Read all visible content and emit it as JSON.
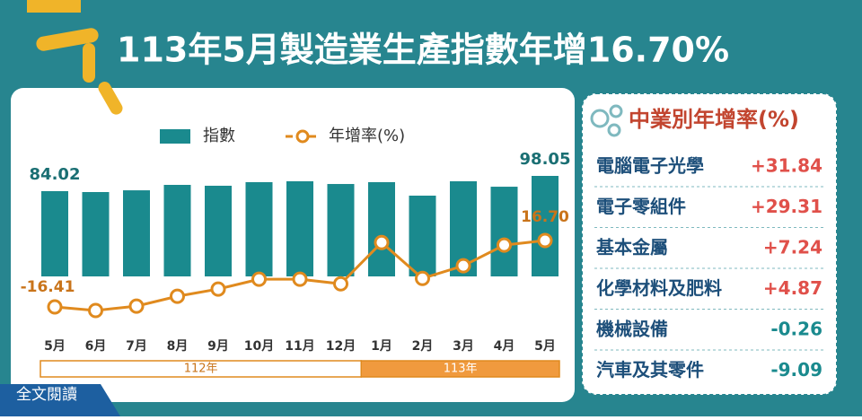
{
  "chart_data": {
    "type": "bar_line",
    "title": "113年5月製造業生產指數年增16.70%",
    "categories": [
      "5月",
      "6月",
      "7月",
      "8月",
      "9月",
      "10月",
      "11月",
      "12月",
      "1月",
      "2月",
      "3月",
      "4月",
      "5月"
    ],
    "groups": [
      {
        "label": "112年",
        "count": 8
      },
      {
        "label": "113年",
        "count": 5
      }
    ],
    "series": [
      {
        "name": "指數",
        "color": "#1a8a8e",
        "kind": "bar",
        "values": [
          84.02,
          83.2,
          84.8,
          89.8,
          89.0,
          92.3,
          93.1,
          90.6,
          92.3,
          79.9,
          93.1,
          88.1,
          98.05
        ],
        "value_labels": [
          "84.02",
          null,
          null,
          null,
          null,
          null,
          null,
          null,
          null,
          null,
          null,
          null,
          "98.05"
        ]
      },
      {
        "name": "年增率(%)",
        "color": "#e08a1e",
        "kind": "line",
        "values": [
          -16.41,
          -18.2,
          -16.0,
          -11.1,
          -7.5,
          -2.6,
          -2.6,
          -4.9,
          15.7,
          -2.2,
          4.1,
          14.4,
          16.7
        ],
        "value_labels": [
          "-16.41",
          null,
          null,
          null,
          null,
          null,
          null,
          null,
          null,
          null,
          null,
          null,
          "16.70"
        ]
      }
    ]
  },
  "side_panel": {
    "title": "中業別年增率(%)",
    "items": [
      {
        "label": "電腦電子光學",
        "value": "+31.84",
        "color": "#e0504a"
      },
      {
        "label": "電子零組件",
        "value": "+29.31",
        "color": "#e0504a"
      },
      {
        "label": "基本金屬",
        "value": "+7.24",
        "color": "#e0504a"
      },
      {
        "label": "化學材料及肥料",
        "value": "+4.87",
        "color": "#e0504a"
      },
      {
        "label": "機械設備",
        "value": "-0.26",
        "color": "#1a8a8e"
      },
      {
        "label": "汽車及其零件",
        "value": "-9.09",
        "color": "#1a8a8e"
      }
    ]
  },
  "button": {
    "label": "全文閱讀"
  }
}
